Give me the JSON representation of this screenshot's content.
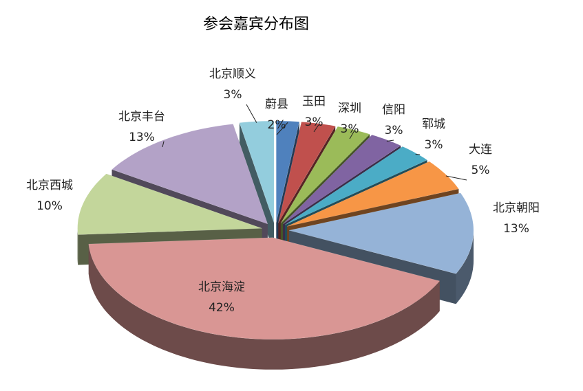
{
  "chart_data": {
    "type": "pie",
    "title": "参会嘉宾分布图",
    "categories": [
      "蔚县",
      "玉田",
      "深圳",
      "信阳",
      "郓城",
      "大连",
      "北京朝阳",
      "北京海淀",
      "北京西城",
      "北京丰台",
      "北京顺义"
    ],
    "values": [
      2,
      3,
      3,
      3,
      3,
      5,
      13,
      42,
      10,
      13,
      3
    ],
    "value_labels": [
      "2%",
      "3%",
      "3%",
      "3%",
      "3%",
      "5%",
      "13%",
      "42%",
      "10%",
      "13%",
      "3%"
    ],
    "colors": [
      "#4f81bd",
      "#c0504d",
      "#9bbb59",
      "#8064a2",
      "#4bacc6",
      "#f79646",
      "#95b3d7",
      "#d99694",
      "#c3d69b",
      "#b3a2c7",
      "#93cddd"
    ]
  }
}
